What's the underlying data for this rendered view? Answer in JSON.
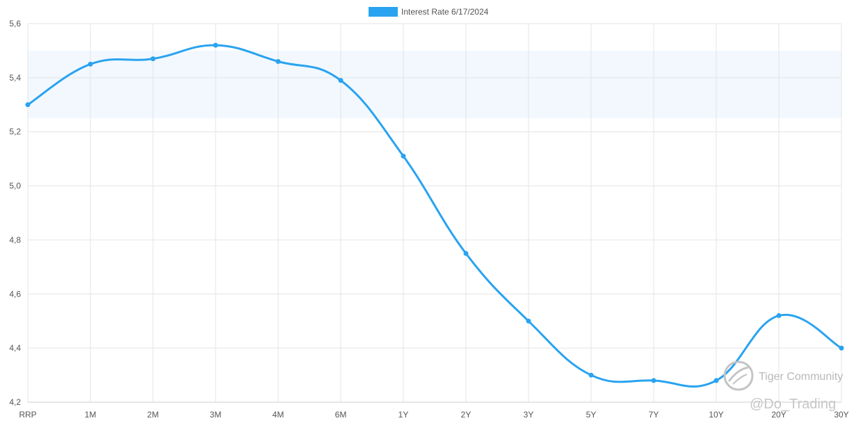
{
  "chart_data": {
    "type": "line",
    "legend": {
      "label": "Interest Rate 6/17/2024",
      "color": "#29a3f0",
      "position": "top-center"
    },
    "categories": [
      "RRP",
      "1M",
      "2M",
      "3M",
      "4M",
      "6M",
      "1Y",
      "2Y",
      "3Y",
      "5Y",
      "7Y",
      "10Y",
      "20Y",
      "30Y"
    ],
    "series": [
      {
        "name": "Interest Rate 6/17/2024",
        "values": [
          5.3,
          5.45,
          5.47,
          5.52,
          5.46,
          5.39,
          5.11,
          4.75,
          4.5,
          4.3,
          4.28,
          4.28,
          4.52,
          4.4
        ]
      }
    ],
    "ylim": [
      4.2,
      5.6
    ],
    "yticks": [
      "5,6",
      "5,4",
      "5,2",
      "5,0",
      "4,8",
      "4,6",
      "4,4",
      "4,2"
    ],
    "ytick_values": [
      5.6,
      5.4,
      5.2,
      5.0,
      4.8,
      4.6,
      4.4,
      4.2
    ],
    "highlight_band": {
      "from": 5.25,
      "to": 5.5,
      "color": "#f2f8fe"
    },
    "grid": true,
    "line_color": "#29a3f0",
    "grid_color": "#e4e4e4"
  },
  "watermark": {
    "brand": "Tiger Community",
    "handle": "@Do_Trading"
  }
}
